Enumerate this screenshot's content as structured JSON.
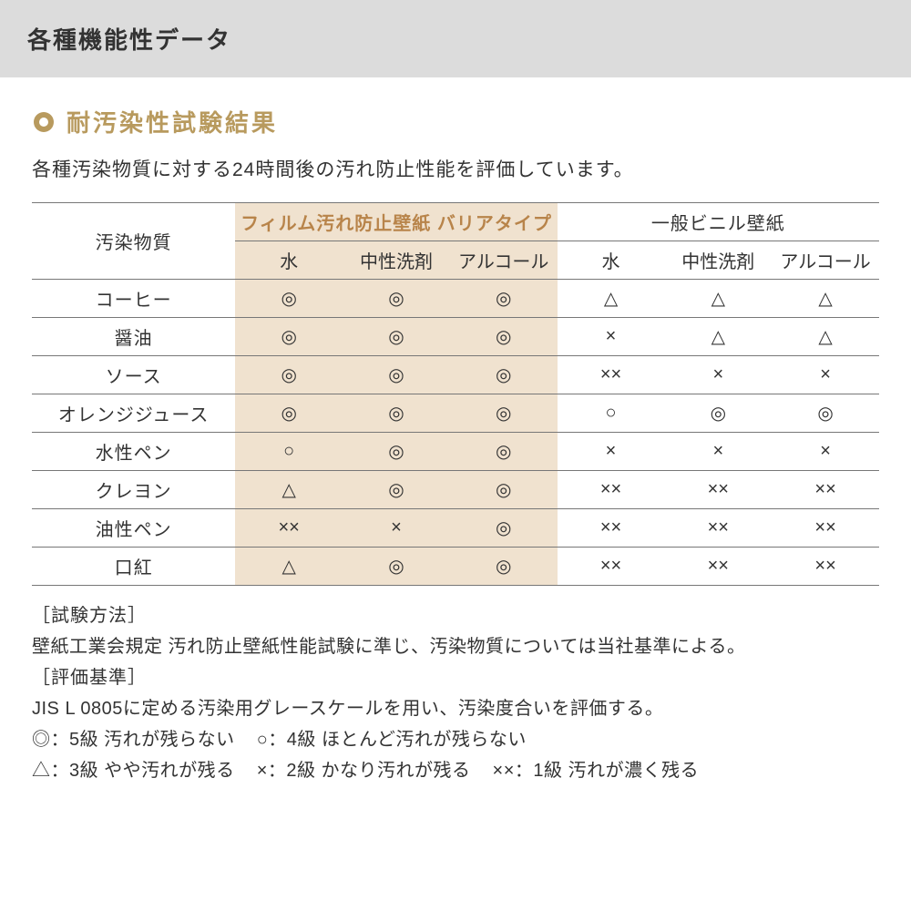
{
  "header": {
    "title": "各種機能性データ"
  },
  "section": {
    "bullet_color_outer": "#b89a5e",
    "bullet_color_inner": "#ffffff",
    "title": "耐汚染性試験結果",
    "intro": "各種汚染物質に対する24時間後の汚れ防止性能を評価しています。"
  },
  "table": {
    "highlight_bg": "#f0e2cf",
    "corner_label": "汚染物質",
    "groups": [
      {
        "label": "フィルム汚れ防止壁紙 バリアタイプ",
        "highlight": true,
        "cols": [
          "水",
          "中性洗剤",
          "アルコール"
        ]
      },
      {
        "label": "一般ビニル壁紙",
        "highlight": false,
        "cols": [
          "水",
          "中性洗剤",
          "アルコール"
        ]
      }
    ],
    "rows": [
      {
        "label": "コーヒー",
        "cells": [
          "◎",
          "◎",
          "◎",
          "△",
          "△",
          "△"
        ]
      },
      {
        "label": "醤油",
        "cells": [
          "◎",
          "◎",
          "◎",
          "×",
          "△",
          "△"
        ]
      },
      {
        "label": "ソース",
        "cells": [
          "◎",
          "◎",
          "◎",
          "××",
          "×",
          "×"
        ]
      },
      {
        "label": "オレンジジュース",
        "cells": [
          "◎",
          "◎",
          "◎",
          "○",
          "◎",
          "◎"
        ]
      },
      {
        "label": "水性ペン",
        "cells": [
          "○",
          "◎",
          "◎",
          "×",
          "×",
          "×"
        ]
      },
      {
        "label": "クレヨン",
        "cells": [
          "△",
          "◎",
          "◎",
          "××",
          "××",
          "××"
        ]
      },
      {
        "label": "油性ペン",
        "cells": [
          "××",
          "×",
          "◎",
          "××",
          "××",
          "××"
        ]
      },
      {
        "label": "口紅",
        "cells": [
          "△",
          "◎",
          "◎",
          "××",
          "××",
          "××"
        ]
      }
    ]
  },
  "notes": {
    "method_tag": "［試験方法］",
    "method_text": "壁紙工業会規定 汚れ防止壁紙性能試験に準じ、汚染物質については当社基準による。",
    "criteria_tag": "［評価基準］",
    "criteria_text": "JIS L 0805に定める汚染用グレースケールを用い、汚染度合いを評価する。",
    "legend": [
      "◎：5級 汚れが残らない",
      "○：4級 ほとんど汚れが残らない",
      "△：3級 やや汚れが残る",
      "×：2級 かなり汚れが残る",
      "××：1級 汚れが濃く残る"
    ]
  }
}
